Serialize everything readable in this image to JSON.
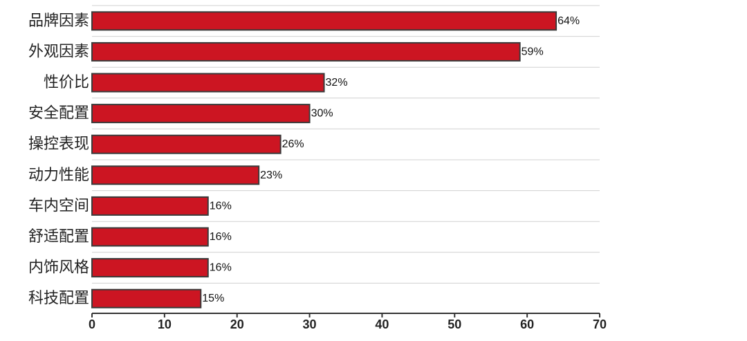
{
  "chart_data": {
    "type": "bar",
    "orientation": "horizontal",
    "categories": [
      "品牌因素",
      "外观因素",
      "性价比",
      "安全配置",
      "操控表现",
      "动力性能",
      "车内空间",
      "舒适配置",
      "内饰风格",
      "科技配置"
    ],
    "values": [
      64,
      59,
      32,
      30,
      26,
      23,
      16,
      16,
      16,
      15
    ],
    "value_labels": [
      "64%",
      "59%",
      "32%",
      "30%",
      "26%",
      "23%",
      "16%",
      "16%",
      "16%",
      "15%"
    ],
    "xlim": [
      0,
      70
    ],
    "xticks": [
      0,
      10,
      20,
      30,
      40,
      50,
      60,
      70
    ],
    "tick_labels": [
      "0",
      "10",
      "20",
      "30",
      "40",
      "50",
      "60",
      "70"
    ],
    "title": "",
    "xlabel": "",
    "ylabel": "",
    "grid": "horizontal row separators",
    "legend": "none"
  },
  "colors": {
    "bar_fill": "#cc1522",
    "bar_stroke": "#3a3a3a",
    "row_line": "#d0d0d0",
    "axis_line": "#333333"
  }
}
